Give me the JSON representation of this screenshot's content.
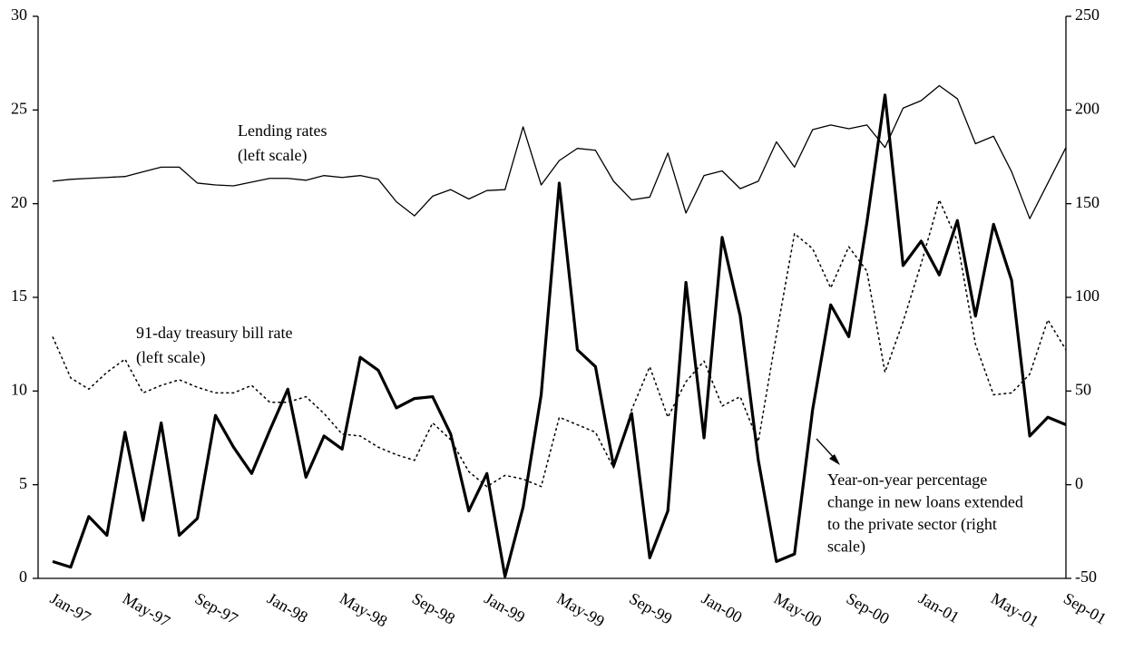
{
  "chart_data": {
    "type": "line",
    "categories": [
      "Jan-97",
      null,
      null,
      null,
      "May-97",
      null,
      null,
      null,
      "Sep-97",
      null,
      null,
      null,
      "Jan-98",
      null,
      null,
      null,
      "May-98",
      null,
      null,
      null,
      "Sep-98",
      null,
      null,
      null,
      "Jan-99",
      null,
      null,
      null,
      "May-99",
      null,
      null,
      null,
      "Sep-99",
      null,
      null,
      null,
      "Jan-00",
      null,
      null,
      null,
      "May-00",
      null,
      null,
      null,
      "Sep-00",
      null,
      null,
      null,
      "Jan-01",
      null,
      null,
      null,
      "May-01",
      null,
      null,
      null,
      "Sep-01"
    ],
    "series": [
      {
        "name": "Lending rates",
        "color": "#000000",
        "width": 1.3,
        "dash": "none",
        "values": [
          21.2,
          21.3,
          21.35,
          21.4,
          21.45,
          21.7,
          21.95,
          21.95,
          21.1,
          21.0,
          20.95,
          21.15,
          21.35,
          21.35,
          21.25,
          21.5,
          21.4,
          21.5,
          21.3,
          20.1,
          19.35,
          20.4,
          20.75,
          20.25,
          20.7,
          20.75,
          24.1,
          21.0,
          22.3,
          22.95,
          22.85,
          21.2,
          20.2,
          20.35,
          22.7,
          19.5,
          21.5,
          21.75,
          20.8,
          21.2,
          23.3,
          21.95,
          23.95,
          24.2,
          24.0,
          24.2,
          23.0,
          25.1,
          25.5,
          26.3,
          25.6,
          23.2,
          23.6,
          21.7,
          19.2,
          21.1,
          23.0
        ]
      },
      {
        "name": "91-day treasury bill rate",
        "color": "#000000",
        "width": 1.5,
        "dash": "3 3",
        "values": [
          12.9,
          10.7,
          10.1,
          11.0,
          11.7,
          9.9,
          10.3,
          10.6,
          10.2,
          9.9,
          9.9,
          10.3,
          9.4,
          9.4,
          9.7,
          8.8,
          7.7,
          7.6,
          7.0,
          6.6,
          6.3,
          8.3,
          7.4,
          5.7,
          4.9,
          5.5,
          5.3,
          4.9,
          8.6,
          8.2,
          7.8,
          5.9,
          9.0,
          11.3,
          8.6,
          10.5,
          11.6,
          9.2,
          9.7,
          7.3,
          13.0,
          18.4,
          17.6,
          15.5,
          17.7,
          16.4,
          11.0,
          13.7,
          16.8,
          20.2,
          18.0,
          12.5,
          9.8,
          9.9,
          10.9,
          13.8,
          12.2
        ]
      },
      {
        "name": "Year-on-year percentage change in new loans extended to the private sector",
        "color": "#000000",
        "width": 3.2,
        "dash": "none",
        "axis": "y2",
        "values": [
          -41,
          -44,
          -17,
          -27,
          28,
          -19,
          33,
          -27,
          -18,
          37,
          20,
          6,
          29,
          51,
          4,
          26,
          19,
          68,
          61,
          41,
          46,
          47,
          27,
          -14,
          6,
          -49,
          -12,
          48,
          161,
          72,
          63,
          10,
          38,
          -39,
          -14,
          108,
          25,
          132,
          90,
          13,
          -41,
          -37,
          40,
          96,
          79,
          140,
          208,
          117,
          130,
          112,
          141,
          90,
          139,
          109,
          26,
          36,
          32
        ]
      }
    ],
    "ylim": [
      0,
      30
    ],
    "yticks": [
      0,
      5,
      10,
      15,
      20,
      25,
      30
    ],
    "y2lim": [
      -50,
      250
    ],
    "y2ticks": [
      -50,
      0,
      50,
      100,
      150,
      200,
      250
    ],
    "grid": false,
    "annotations": [
      {
        "lines": [
          "Lending rates",
          "(left scale)"
        ]
      },
      {
        "lines": [
          "91-day treasury bill rate",
          "(left scale)"
        ]
      },
      {
        "lines": [
          "Year-on-year percentage",
          "change in new loans extended",
          "to the private sector (right",
          "scale)"
        ]
      }
    ]
  }
}
